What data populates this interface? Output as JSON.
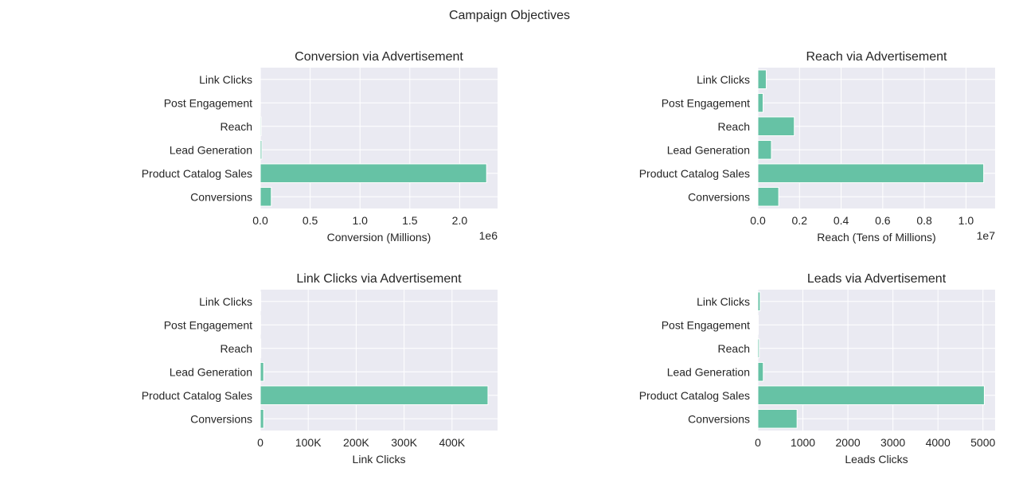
{
  "figure": {
    "suptitle": "Campaign Objectives"
  },
  "style": {
    "bar_color": "#66c2a5",
    "panel_bg": "#eaeaf2",
    "grid_color": "#ffffff",
    "text_color": "#262626"
  },
  "chart_data": [
    {
      "type": "bar",
      "orientation": "horizontal",
      "title": "Conversion via Advertisement",
      "xlabel": "Conversion (Millions)",
      "ylabel": "",
      "offset_text": "1e6",
      "categories": [
        "Link Clicks",
        "Post Engagement",
        "Reach",
        "Lead Generation",
        "Product Catalog Sales",
        "Conversions"
      ],
      "values": [
        800,
        1500,
        9000,
        15000,
        2270000,
        110000
      ],
      "xlim": [
        0,
        2380000
      ],
      "xticks": [
        0,
        500000,
        1000000,
        1500000,
        2000000
      ],
      "xtick_labels": [
        "0.0",
        "0.5",
        "1.0",
        "1.5",
        "2.0"
      ],
      "grid": true
    },
    {
      "type": "bar",
      "orientation": "horizontal",
      "title": "Reach via Advertisement",
      "xlabel": "Reach (Tens of Millions)",
      "ylabel": "",
      "offset_text": "1e7",
      "categories": [
        "Link Clicks",
        "Post Engagement",
        "Reach",
        "Lead Generation",
        "Product Catalog Sales",
        "Conversions"
      ],
      "values": [
        400000,
        250000,
        1750000,
        650000,
        10850000,
        1000000
      ],
      "xlim": [
        0,
        11400000
      ],
      "xticks": [
        0,
        2000000,
        4000000,
        6000000,
        8000000,
        10000000
      ],
      "xtick_labels": [
        "0.0",
        "0.2",
        "0.4",
        "0.6",
        "0.8",
        "1.0"
      ],
      "grid": true
    },
    {
      "type": "bar",
      "orientation": "horizontal",
      "title": "Link Clicks via Advertisement",
      "xlabel": "Link Clicks",
      "ylabel": "",
      "categories": [
        "Link Clicks",
        "Post Engagement",
        "Reach",
        "Lead Generation",
        "Product Catalog Sales",
        "Conversions"
      ],
      "values": [
        1000,
        500,
        1000,
        7000,
        475000,
        7000
      ],
      "xlim": [
        0,
        495000
      ],
      "xticks": [
        0,
        100000,
        200000,
        300000,
        400000
      ],
      "xtick_labels": [
        "0",
        "100K",
        "200K",
        "300K",
        "400K"
      ],
      "grid": true
    },
    {
      "type": "bar",
      "orientation": "horizontal",
      "title": "Leads via Advertisement",
      "xlabel": "Leads Clicks",
      "ylabel": "",
      "categories": [
        "Link Clicks",
        "Post Engagement",
        "Reach",
        "Lead Generation",
        "Product Catalog Sales",
        "Conversions"
      ],
      "values": [
        50,
        10,
        30,
        120,
        5030,
        870
      ],
      "xlim": [
        0,
        5270
      ],
      "xticks": [
        0,
        1000,
        2000,
        3000,
        4000,
        5000
      ],
      "xtick_labels": [
        "0",
        "1000",
        "2000",
        "3000",
        "4000",
        "5000"
      ],
      "grid": true
    }
  ]
}
